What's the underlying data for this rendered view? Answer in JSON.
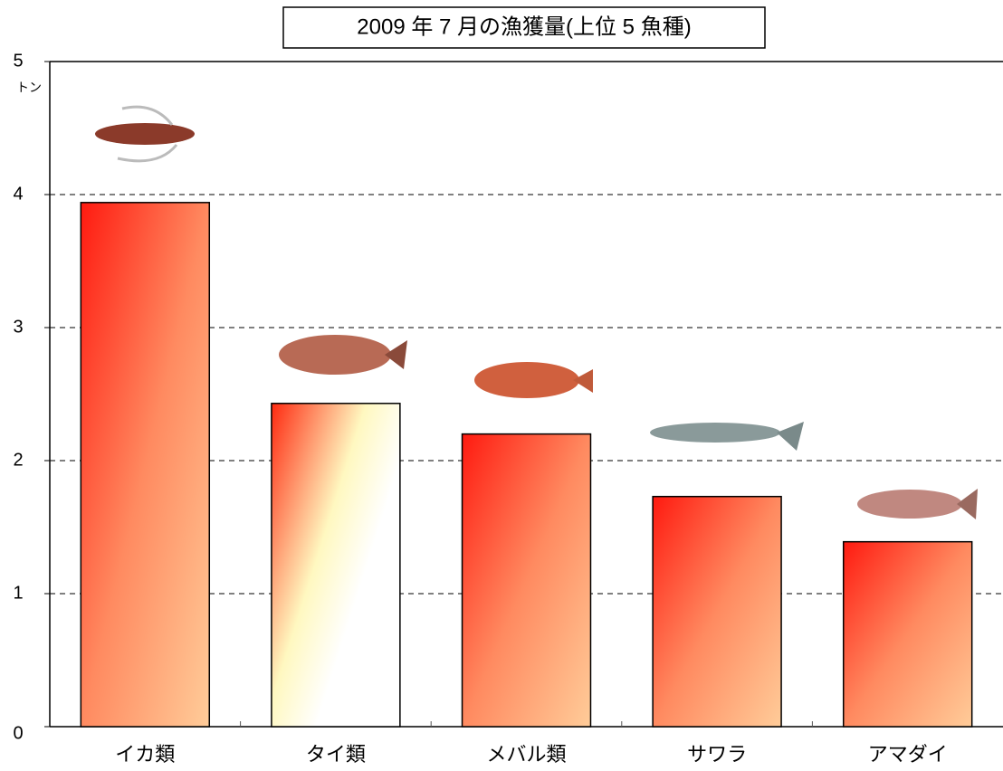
{
  "chart_data": {
    "type": "bar",
    "title": "2009 年 7 月の漁獲量(上位 5 魚種)",
    "ylabel": "トン",
    "categories": [
      "イカ類",
      "タイ類",
      "メバル類",
      "サワラ",
      "アマダイ"
    ],
    "values": [
      3.94,
      2.43,
      2.2,
      1.73,
      1.39
    ],
    "ylim": [
      0,
      5
    ],
    "yticks": [
      0,
      1,
      2,
      3,
      4,
      5
    ],
    "grid": true
  }
}
